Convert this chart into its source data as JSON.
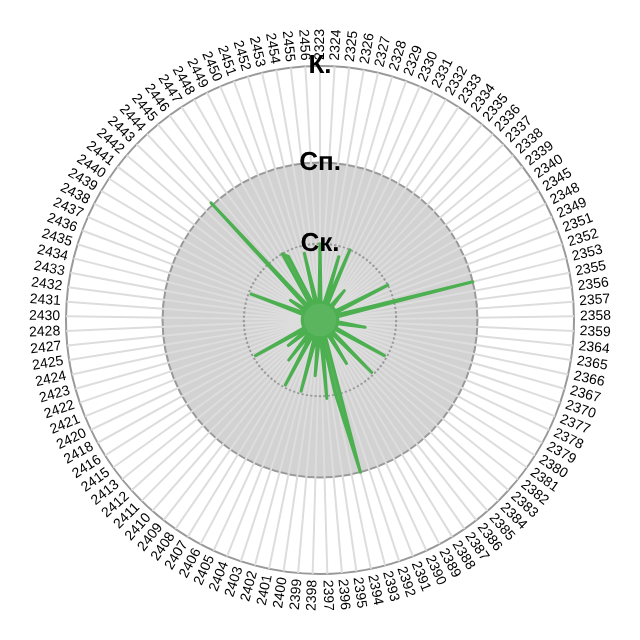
{
  "chart_data": {
    "type": "radar",
    "legend": false,
    "grid": true,
    "ylim": [
      0,
      1
    ],
    "yticks": [
      {
        "value": 0.3,
        "label": "Ск."
      },
      {
        "value": 0.62,
        "label": "Сп."
      },
      {
        "value": 1,
        "label": "К."
      }
    ],
    "categories": [
      "2323",
      "2324",
      "2325",
      "2326",
      "2327",
      "2328",
      "2329",
      "2330",
      "2331",
      "2332",
      "2333",
      "2334",
      "2335",
      "2336",
      "2337",
      "2338",
      "2339",
      "2340",
      "2345",
      "2348",
      "2349",
      "2351",
      "2352",
      "2353",
      "2355",
      "2356",
      "2357",
      "2358",
      "2359",
      "2364",
      "2365",
      "2366",
      "2367",
      "2370",
      "2377",
      "2378",
      "2379",
      "2380",
      "2381",
      "2382",
      "2383",
      "2384",
      "2385",
      "2386",
      "2387",
      "2388",
      "2389",
      "2390",
      "2391",
      "2392",
      "2393",
      "2394",
      "2395",
      "2396",
      "2397",
      "2398",
      "2399",
      "2400",
      "2401",
      "2402",
      "2403",
      "2404",
      "2405",
      "2406",
      "2407",
      "2408",
      "2409",
      "2410",
      "2411",
      "2412",
      "2413",
      "2415",
      "2416",
      "2418",
      "2420",
      "2421",
      "2422",
      "2423",
      "2424",
      "2425",
      "2427",
      "2428",
      "2430",
      "2431",
      "2432",
      "2433",
      "2434",
      "2435",
      "2436",
      "2437",
      "2438",
      "2439",
      "2440",
      "2441",
      "2442",
      "2443",
      "2444",
      "2445",
      "2446",
      "2447",
      "2448",
      "2449",
      "2450",
      "2451",
      "2452",
      "2453",
      "2454",
      "2455",
      "2456"
    ],
    "series": [
      {
        "color": "#4caf50",
        "values": [
          0.3,
          0.07,
          0.07,
          0.07,
          0.07,
          0.26,
          0.07,
          0.3,
          0.07,
          0.07,
          0.07,
          0.07,
          0.15,
          0.07,
          0.07,
          0.07,
          0.07,
          0.07,
          0.07,
          0.3,
          0.07,
          0.07,
          0.07,
          0.62,
          0.07,
          0.07,
          0.07,
          0.07,
          0.07,
          0.07,
          0.18,
          0.07,
          0.07,
          0.07,
          0.07,
          0.07,
          0.29,
          0.07,
          0.07,
          0.07,
          0.07,
          0.29,
          0.07,
          0.07,
          0.07,
          0.2,
          0.07,
          0.07,
          0.07,
          0.07,
          0.62,
          0.29,
          0.07,
          0.31,
          0.07,
          0.07,
          0.22,
          0.07,
          0.07,
          0.29,
          0.07,
          0.07,
          0.07,
          0.29,
          0.07,
          0.07,
          0.2,
          0.07,
          0.07,
          0.07,
          0.16,
          0.07,
          0.07,
          0.29,
          0.07,
          0.07,
          0.07,
          0.07,
          0.07,
          0.07,
          0.07,
          0.07,
          0.07,
          0.07,
          0.07,
          0.07,
          0.07,
          0.07,
          0.29,
          0.07,
          0.07,
          0.07,
          0.14,
          0.07,
          0.07,
          0.07,
          0.63,
          0.07,
          0.07,
          0.07,
          0.3,
          0.28,
          0.07,
          0.07,
          0.07,
          0.27,
          0.07,
          0.07,
          0.07
        ]
      }
    ]
  }
}
